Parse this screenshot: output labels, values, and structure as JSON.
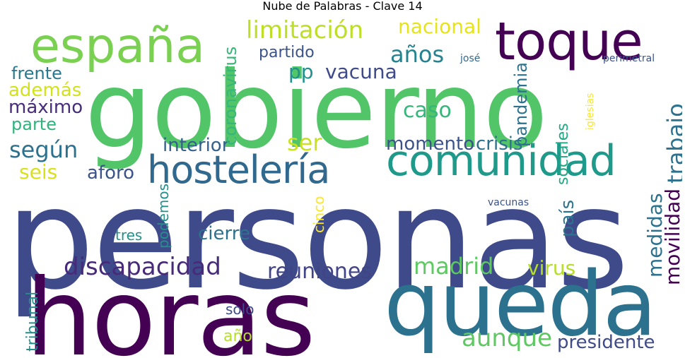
{
  "title": "Nube de Palabras - Clave 14",
  "colors": {
    "background": "#ffffff",
    "title_text": "#000000",
    "palette": [
      "#440154",
      "#472d7b",
      "#3b528b",
      "#2c728e",
      "#21918c",
      "#28ae80",
      "#5ec962",
      "#addc30",
      "#fde725"
    ]
  },
  "words": [
    {
      "text": "personas",
      "color": "#3e4a89"
    },
    {
      "text": "gobierno",
      "color": "#52c569"
    },
    {
      "text": "horas",
      "color": "#440154"
    },
    {
      "text": "queda",
      "color": "#2c728e"
    },
    {
      "text": "toque",
      "color": "#440154"
    },
    {
      "text": "españa",
      "color": "#7ad151"
    },
    {
      "text": "comunidad",
      "color": "#1f9a8a"
    },
    {
      "text": "hostelería",
      "color": "#31688e"
    },
    {
      "text": "limitación",
      "color": "#bddf26"
    },
    {
      "text": "discapacidad",
      "color": "#472a7a"
    },
    {
      "text": "reuniones",
      "color": "#414487"
    },
    {
      "text": "madrid",
      "color": "#5ec962"
    },
    {
      "text": "virus",
      "color": "#b5de2b"
    },
    {
      "text": "aunque",
      "color": "#5ec962"
    },
    {
      "text": "presidente",
      "color": "#3e4a89"
    },
    {
      "text": "nacional",
      "color": "#e5e419"
    },
    {
      "text": "años",
      "color": "#26828e"
    },
    {
      "text": "partido",
      "color": "#3b528b"
    },
    {
      "text": "pp",
      "color": "#21918c"
    },
    {
      "text": "vacuna",
      "color": "#3e4a89"
    },
    {
      "text": "frente",
      "color": "#2a788e"
    },
    {
      "text": "además",
      "color": "#d2e21b"
    },
    {
      "text": "máximo",
      "color": "#472d7b"
    },
    {
      "text": "parte",
      "color": "#2fb47c"
    },
    {
      "text": "según",
      "color": "#2c728e"
    },
    {
      "text": "seis",
      "color": "#d8e219"
    },
    {
      "text": "aforo",
      "color": "#3b528b"
    },
    {
      "text": "ser",
      "color": "#cae11f"
    },
    {
      "text": "caso",
      "color": "#35b779"
    },
    {
      "text": "interior",
      "color": "#355f8d"
    },
    {
      "text": "momento",
      "color": "#3b528b"
    },
    {
      "text": "crisis",
      "color": "#2d708e"
    },
    {
      "text": "coronavirus",
      "color": "#35b779"
    },
    {
      "text": "pandemia",
      "color": "#2c728e"
    },
    {
      "text": "trabajo",
      "color": "#2c728e"
    },
    {
      "text": "sociales",
      "color": "#22a884"
    },
    {
      "text": "iglesias",
      "color": "#fde725"
    },
    {
      "text": "josé",
      "color": "#31688e"
    },
    {
      "text": "perimetral",
      "color": "#3b528b"
    },
    {
      "text": "cinco",
      "color": "#fde725"
    },
    {
      "text": "podemos",
      "color": "#21918c"
    },
    {
      "text": "tres",
      "color": "#21918c"
    },
    {
      "text": "cierre",
      "color": "#2c728e"
    },
    {
      "text": "país",
      "color": "#2c728e"
    },
    {
      "text": "vacunas",
      "color": "#3b528b"
    },
    {
      "text": "medidas",
      "color": "#2c728e"
    },
    {
      "text": "movilidad",
      "color": "#440154"
    },
    {
      "text": "tribunal",
      "color": "#21918c"
    },
    {
      "text": "solo",
      "color": "#3e4a89"
    },
    {
      "text": "año",
      "color": "#b5de2b"
    }
  ]
}
